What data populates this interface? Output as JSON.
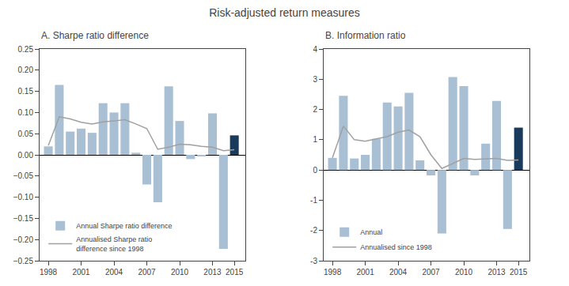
{
  "title": "Risk-adjusted return measures",
  "chart_data": [
    {
      "type": "bar",
      "title": "A. Sharpe ratio difference",
      "x": [
        1998,
        1999,
        2000,
        2001,
        2002,
        2003,
        2004,
        2005,
        2006,
        2007,
        2008,
        2009,
        2010,
        2011,
        2012,
        2013,
        2014,
        2015
      ],
      "xlim": [
        1997.2,
        2016.0
      ],
      "xticks": [
        1998,
        2001,
        2004,
        2007,
        2010,
        2013,
        2015
      ],
      "ylim": [
        -0.25,
        0.25
      ],
      "yticks": [
        {
          "value": -0.25,
          "label": "−0.25"
        },
        {
          "value": -0.2,
          "label": "−0.20"
        },
        {
          "value": -0.15,
          "label": "−0.15"
        },
        {
          "value": -0.1,
          "label": "−0.10"
        },
        {
          "value": -0.05,
          "label": "−0.05"
        },
        {
          "value": 0.0,
          "label": "0.00"
        },
        0.05,
        {
          "value": 0.1,
          "label": "0.10"
        },
        0.15,
        {
          "value": 0.2,
          "label": "0.20"
        },
        0.25
      ],
      "y2lim": [
        -0.25,
        0.25
      ],
      "y2ticks": [
        {
          "value": -0.25,
          "label": "−0.25"
        },
        {
          "value": -0.2,
          "label": "−0.20"
        },
        {
          "value": -0.15,
          "label": "−0.15"
        },
        {
          "value": -0.1,
          "label": "−0.10"
        },
        {
          "value": -0.05,
          "label": "−0.05"
        },
        {
          "value": 0.0,
          "label": "0.00"
        },
        0.05,
        {
          "value": 0.1,
          "label": "0.10"
        },
        0.15,
        {
          "value": 0.2,
          "label": "0.20"
        },
        0.25
      ],
      "grid": false,
      "legend": "lower left",
      "series": [
        {
          "name": "Annual Sharpe ratio difference",
          "type": "bar",
          "colors": [
            "#a8bfd4",
            "#a8bfd4",
            "#a8bfd4",
            "#a8bfd4",
            "#a8bfd4",
            "#a8bfd4",
            "#a8bfd4",
            "#a8bfd4",
            "#a8bfd4",
            "#a8bfd4",
            "#a8bfd4",
            "#a8bfd4",
            "#a8bfd4",
            "#a8bfd4",
            "#a8bfd4",
            "#a8bfd4",
            "#a8bfd4",
            "#1a3a5c"
          ],
          "values": [
            0.02,
            0.165,
            0.055,
            0.062,
            0.052,
            0.122,
            0.1,
            0.122,
            0.005,
            -0.07,
            -0.112,
            0.162,
            0.08,
            -0.01,
            -0.002,
            0.098,
            -0.222,
            0.046
          ]
        },
        {
          "name": "Annualised Sharpe ratio\ndifference since 1998",
          "type": "line",
          "color": "#a0a0a0",
          "values": [
            0.022,
            0.09,
            0.085,
            0.077,
            0.073,
            0.078,
            0.08,
            0.083,
            0.073,
            0.062,
            0.013,
            0.018,
            0.025,
            0.024,
            0.02,
            0.018,
            0.01,
            0.012
          ]
        }
      ]
    },
    {
      "type": "bar",
      "title": "B. Information ratio",
      "x": [
        1998,
        1999,
        2000,
        2001,
        2002,
        2003,
        2004,
        2005,
        2006,
        2007,
        2008,
        2009,
        2010,
        2011,
        2012,
        2013,
        2014,
        2015
      ],
      "xlim": [
        1997.2,
        2016.0
      ],
      "xticks": [
        1998,
        2001,
        2004,
        2007,
        2010,
        2013,
        2015
      ],
      "ylim": [
        -3,
        4
      ],
      "yticks": [
        -3,
        -2,
        -1,
        0,
        1,
        2,
        3,
        4
      ],
      "y2lim": [
        -3,
        4
      ],
      "y2ticks": [
        -3,
        -2,
        -1,
        0,
        1,
        2,
        3,
        4
      ],
      "grid": false,
      "legend": "lower left",
      "series": [
        {
          "name": "Annual",
          "type": "bar",
          "colors": [
            "#a8bfd4",
            "#a8bfd4",
            "#a8bfd4",
            "#a8bfd4",
            "#a8bfd4",
            "#a8bfd4",
            "#a8bfd4",
            "#a8bfd4",
            "#a8bfd4",
            "#a8bfd4",
            "#a8bfd4",
            "#a8bfd4",
            "#a8bfd4",
            "#a8bfd4",
            "#a8bfd4",
            "#a8bfd4",
            "#a8bfd4",
            "#1a3a5c"
          ],
          "values": [
            0.4,
            2.45,
            0.38,
            0.5,
            1.03,
            2.23,
            2.1,
            2.55,
            0.32,
            -0.18,
            -2.1,
            3.07,
            2.77,
            -0.18,
            0.87,
            2.28,
            -1.95,
            1.4
          ]
        },
        {
          "name": "Annualised since 1998",
          "type": "line",
          "color": "#a0a0a0",
          "values": [
            0.4,
            1.45,
            1.0,
            0.95,
            1.03,
            1.1,
            1.25,
            1.32,
            1.1,
            0.5,
            0.05,
            0.22,
            0.38,
            0.35,
            0.37,
            0.38,
            0.32,
            0.33
          ]
        }
      ]
    }
  ]
}
